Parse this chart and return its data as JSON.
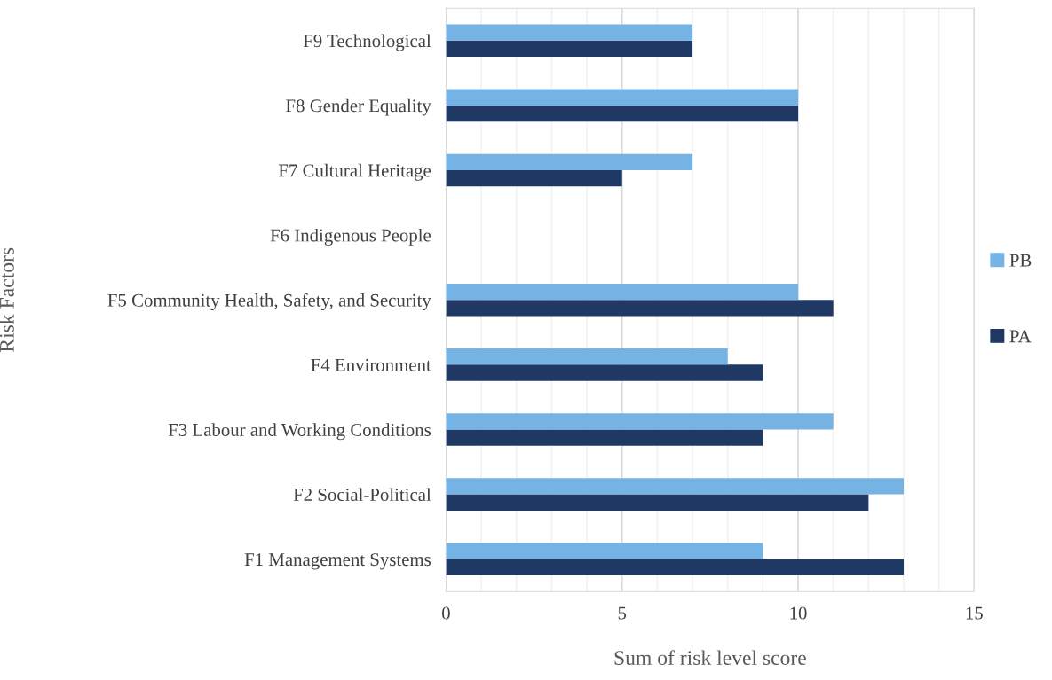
{
  "chart_data": {
    "type": "bar",
    "orientation": "horizontal",
    "ylabel": "Risk Factors",
    "xlabel": "Sum of risk level score",
    "categories": [
      "F9 Technological",
      "F8 Gender Equality",
      "F7 Cultural Heritage",
      "F6 Indigenous People",
      "F5 Community Health, Safety, and Security",
      "F4 Environment",
      "F3 Labour and Working Conditions",
      "F2 Social-Political",
      "F1 Management Systems"
    ],
    "series": [
      {
        "name": "PA",
        "color": "#203864",
        "values": [
          7,
          10,
          5,
          0,
          11,
          9,
          9,
          12,
          13
        ]
      },
      {
        "name": "PB",
        "color": "#74b3e3",
        "values": [
          7,
          10,
          7,
          0,
          10,
          8,
          11,
          13,
          9
        ]
      }
    ],
    "xlim": [
      0,
      15
    ],
    "xticks": [
      0,
      5,
      10,
      15
    ],
    "grid": "x",
    "legend": "right"
  }
}
